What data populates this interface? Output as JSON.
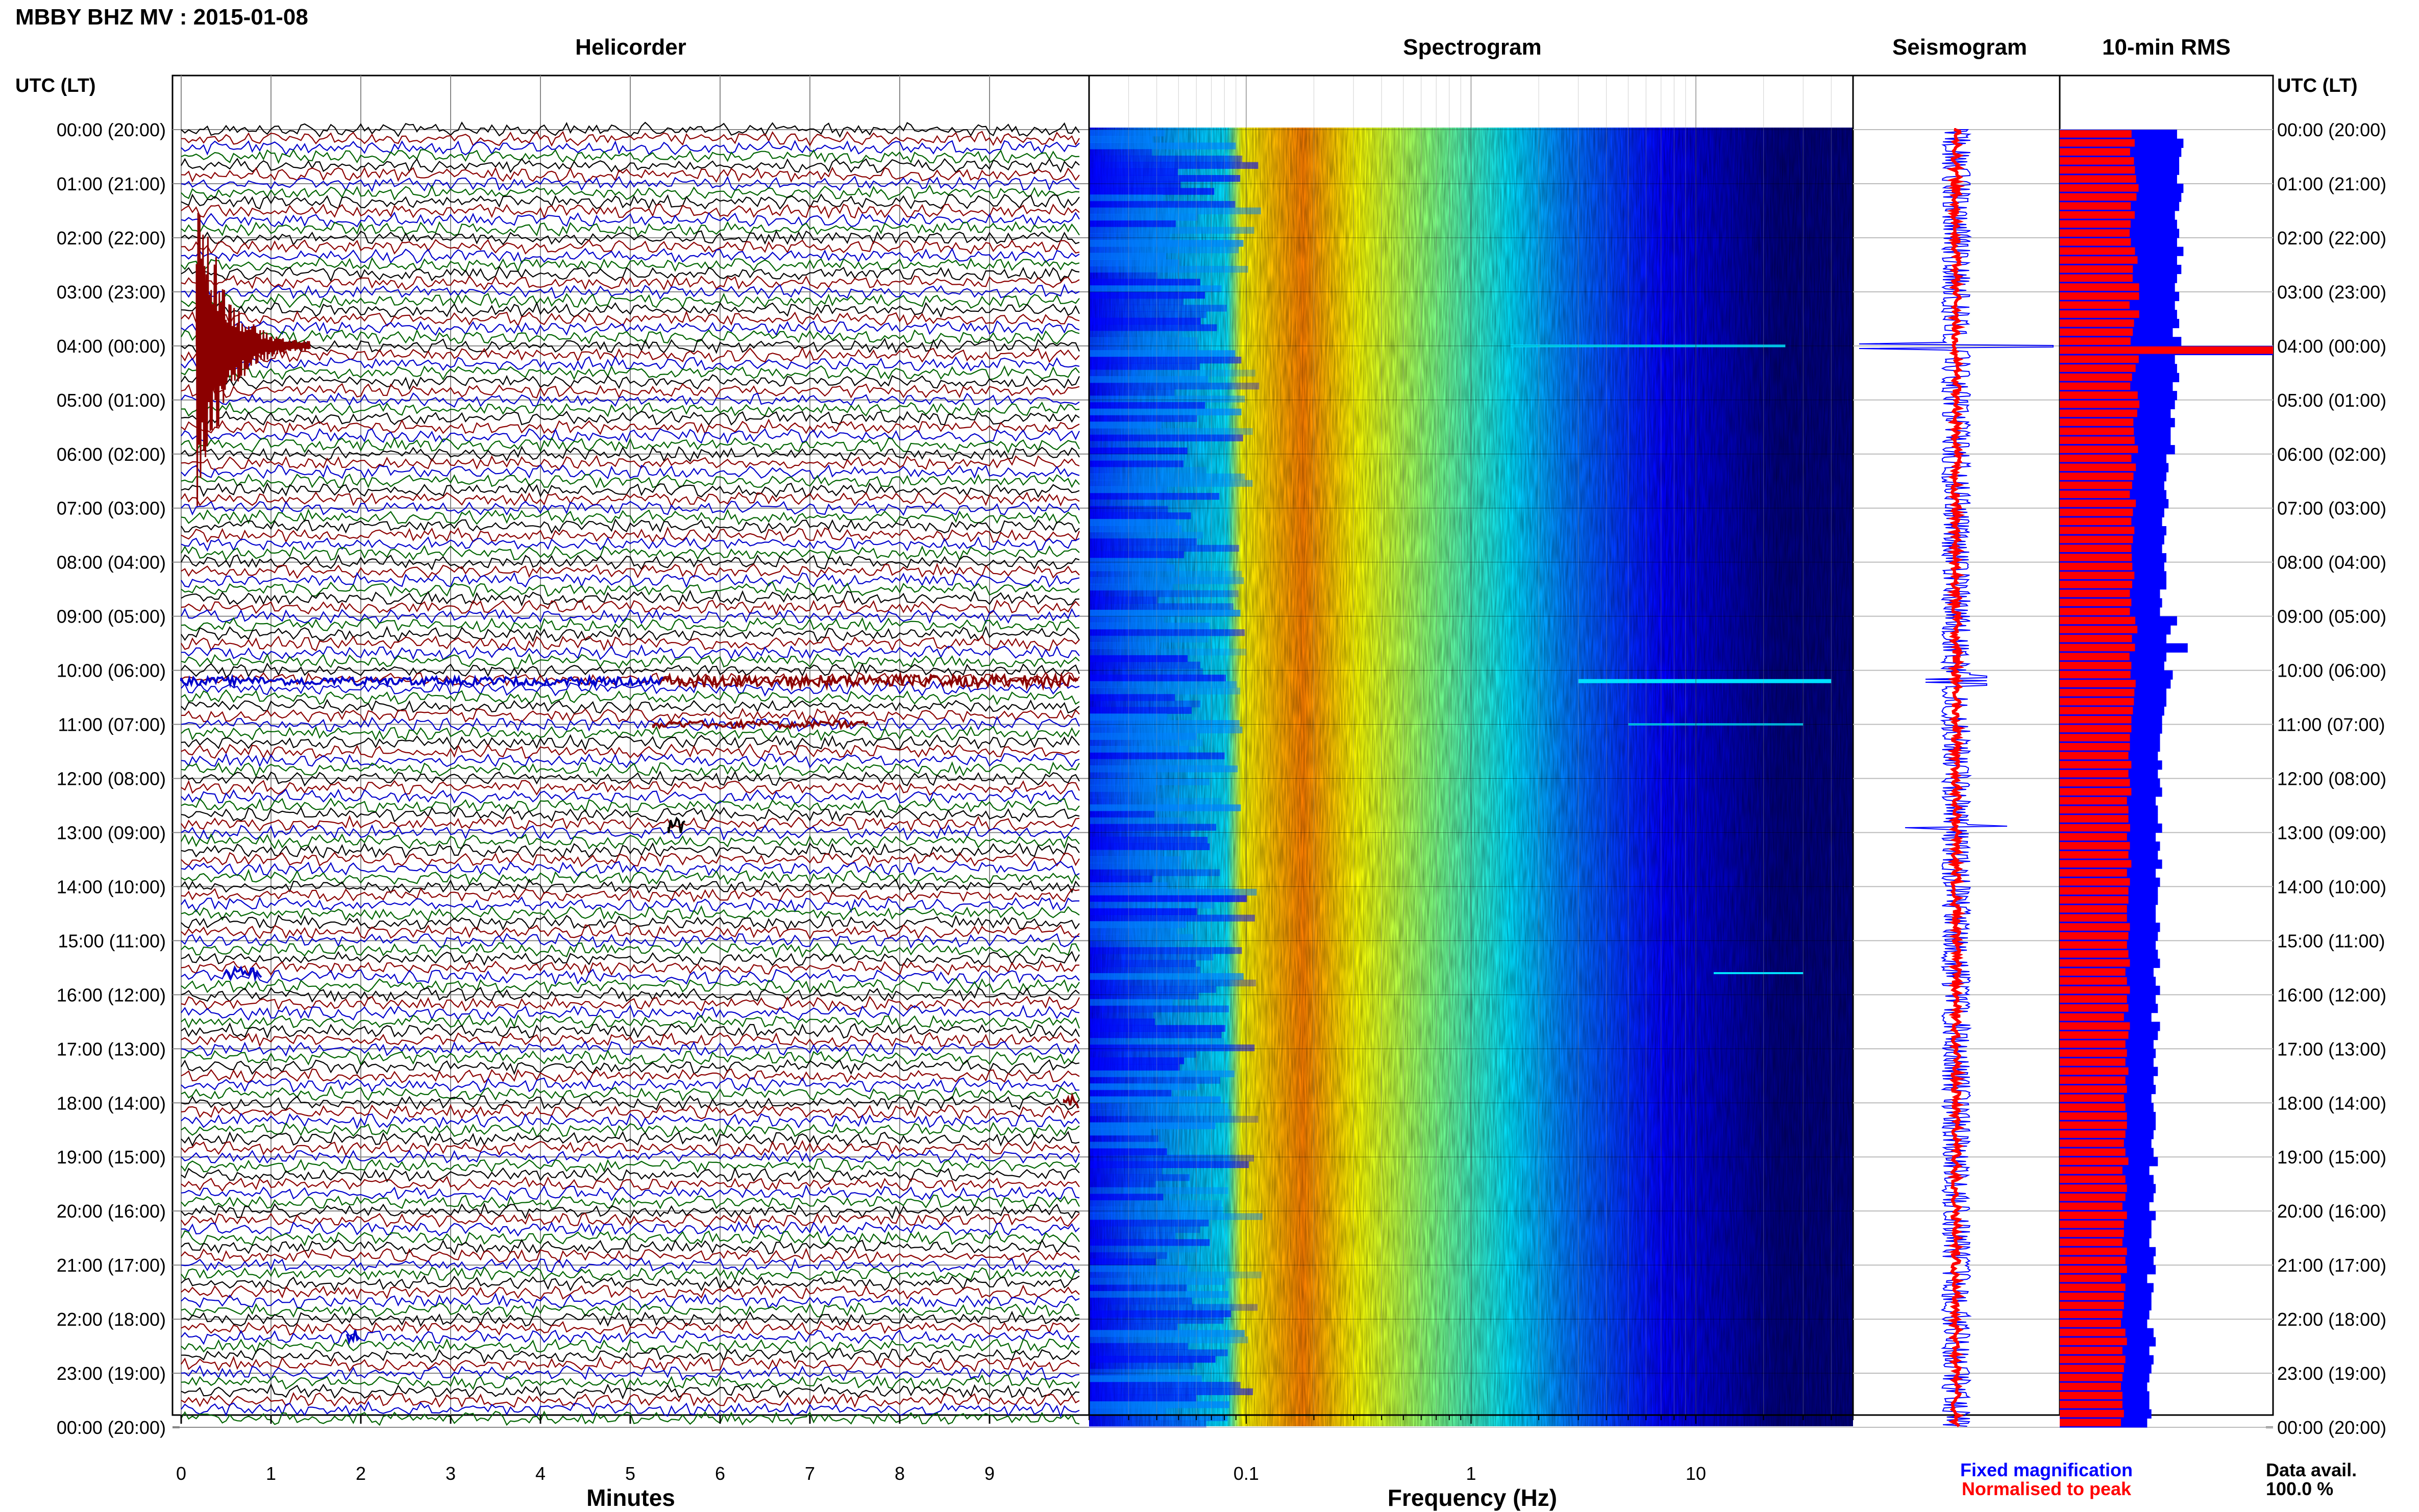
{
  "title": "MBBY BHZ MV : 2015-01-08",
  "time_axis_label": "UTC (LT)",
  "time_labels": [
    "00:00 (20:00)",
    "01:00 (21:00)",
    "02:00 (22:00)",
    "03:00 (23:00)",
    "04:00 (00:00)",
    "05:00 (01:00)",
    "06:00 (02:00)",
    "07:00 (03:00)",
    "08:00 (04:00)",
    "09:00 (05:00)",
    "10:00 (06:00)",
    "11:00 (07:00)",
    "12:00 (08:00)",
    "13:00 (09:00)",
    "14:00 (10:00)",
    "15:00 (11:00)",
    "16:00 (12:00)",
    "17:00 (13:00)",
    "18:00 (14:00)",
    "19:00 (15:00)",
    "20:00 (16:00)",
    "21:00 (17:00)",
    "22:00 (18:00)",
    "23:00 (19:00)",
    "00:00 (20:00)"
  ],
  "panels": {
    "helicorder": {
      "title": "Helicorder",
      "xlabel": "Minutes",
      "xticks": [
        "0",
        "1",
        "2",
        "3",
        "4",
        "5",
        "6",
        "7",
        "8",
        "9"
      ],
      "trace_colors": [
        "#000000",
        "#8b0000",
        "#0000cc",
        "#006400"
      ]
    },
    "spectrogram": {
      "title": "Spectrogram",
      "xlabel": "Frequency (Hz)",
      "xticks": [
        "0.1",
        "1",
        "10"
      ],
      "freq_range_hz": [
        0.02,
        50
      ],
      "colormap": [
        "#000080",
        "#0000ff",
        "#0080ff",
        "#00e0ff",
        "#80ff80",
        "#ffff00",
        "#ff8000",
        "#ff0000"
      ]
    },
    "seismogram": {
      "title": "Seismogram"
    },
    "rms": {
      "title": "10-min RMS"
    }
  },
  "legend": {
    "fixed": "Fixed magnification",
    "fixed_color": "#0000ff",
    "normalised": "Normalised to peak",
    "normalised_color": "#ff0000"
  },
  "data_avail": {
    "label": "Data avail.",
    "value": "100.0 %"
  },
  "chart_data": {
    "type": "heatmap",
    "title": "MBBY BHZ MV : 2015-01-08",
    "subplots": [
      "Helicorder",
      "Spectrogram",
      "Seismogram",
      "10-min RMS"
    ],
    "y_hours_utc": [
      0,
      24
    ],
    "helicorder_minutes": [
      0,
      10
    ],
    "spectrogram_frequency_hz": [
      0.02,
      50
    ],
    "spectrogram_log_scale": true,
    "events_utc_hours": [
      4.0,
      10.2,
      11.0,
      12.9,
      15.6,
      18.0,
      22.3
    ],
    "rms_fixed_rel": [
      0.55,
      0.58,
      0.57,
      0.56,
      0.56,
      0.55,
      0.58,
      0.57,
      0.56,
      0.54,
      0.55,
      0.56,
      0.55,
      0.58,
      0.55,
      0.57,
      0.55,
      0.54,
      0.56,
      0.54,
      0.55,
      0.56,
      0.53,
      0.57,
      1.0,
      0.54,
      0.55,
      0.56,
      0.53,
      0.55,
      0.54,
      0.52,
      0.54,
      0.52,
      0.52,
      0.54,
      0.5,
      0.51,
      0.5,
      0.49,
      0.5,
      0.51,
      0.49,
      0.48,
      0.5,
      0.49,
      0.48,
      0.5,
      0.49,
      0.5,
      0.5,
      0.47,
      0.48,
      0.47,
      0.55,
      0.52,
      0.5,
      0.6,
      0.5,
      0.49,
      0.53,
      0.52,
      0.5,
      0.5,
      0.49,
      0.48,
      0.48,
      0.47,
      0.47,
      0.46,
      0.48,
      0.46,
      0.47,
      0.48,
      0.45,
      0.46,
      0.46,
      0.48,
      0.45,
      0.47,
      0.46,
      0.48,
      0.45,
      0.47,
      0.46,
      0.46,
      0.45,
      0.45,
      0.47,
      0.46,
      0.45,
      0.46,
      0.47,
      0.44,
      0.45,
      0.47,
      0.45,
      0.46,
      0.43,
      0.47,
      0.46,
      0.44,
      0.45,
      0.44,
      0.46,
      0.44,
      0.45,
      0.43,
      0.44,
      0.45,
      0.45,
      0.44,
      0.43,
      0.44,
      0.46,
      0.42,
      0.44,
      0.45,
      0.44,
      0.42,
      0.45,
      0.43,
      0.43,
      0.42,
      0.45,
      0.44,
      0.45,
      0.41,
      0.44,
      0.43,
      0.43,
      0.42,
      0.41,
      0.44,
      0.45,
      0.42,
      0.44,
      0.43,
      0.42,
      0.41,
      0.42,
      0.42,
      0.43,
      0.41
    ]
  }
}
